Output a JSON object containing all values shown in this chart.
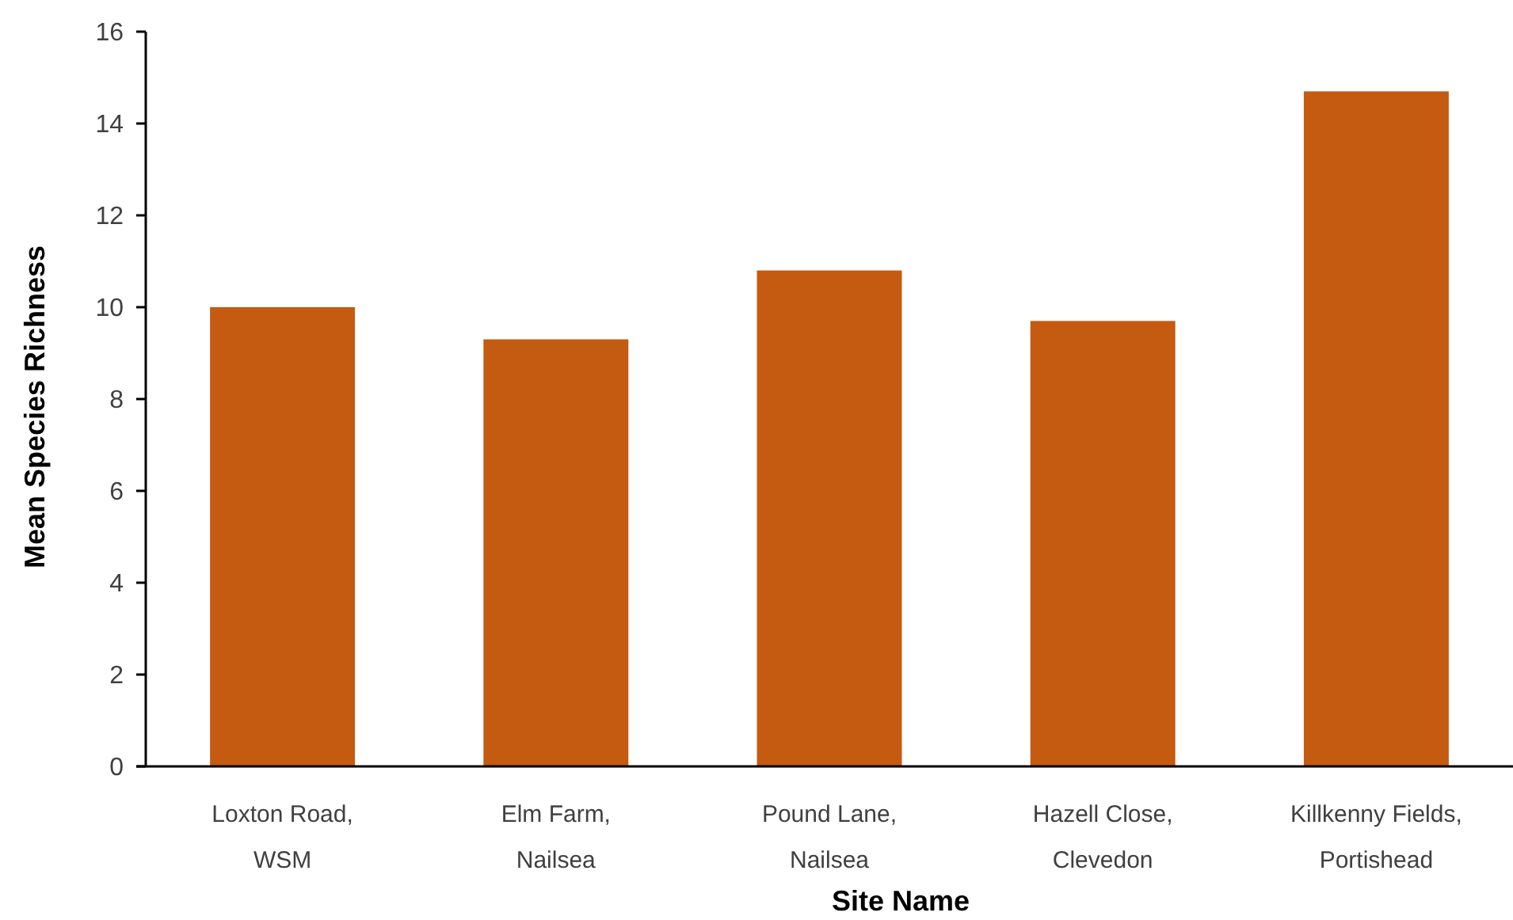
{
  "chart_data": {
    "type": "bar",
    "xlabel": "Site Name",
    "ylabel": "Mean Species Richness",
    "categories": [
      "Loxton Road, WSM",
      "Elm Farm, Nailsea",
      "Pound Lane, Nailsea",
      "Hazell Close, Clevedon",
      "Killkenny Fields, Portishead"
    ],
    "values": [
      10.0,
      9.3,
      10.8,
      9.7,
      14.7
    ],
    "color": "#c55a11",
    "ylim": [
      0,
      16
    ],
    "yticks": [
      0,
      2,
      4,
      6,
      8,
      10,
      12,
      14,
      16
    ]
  }
}
